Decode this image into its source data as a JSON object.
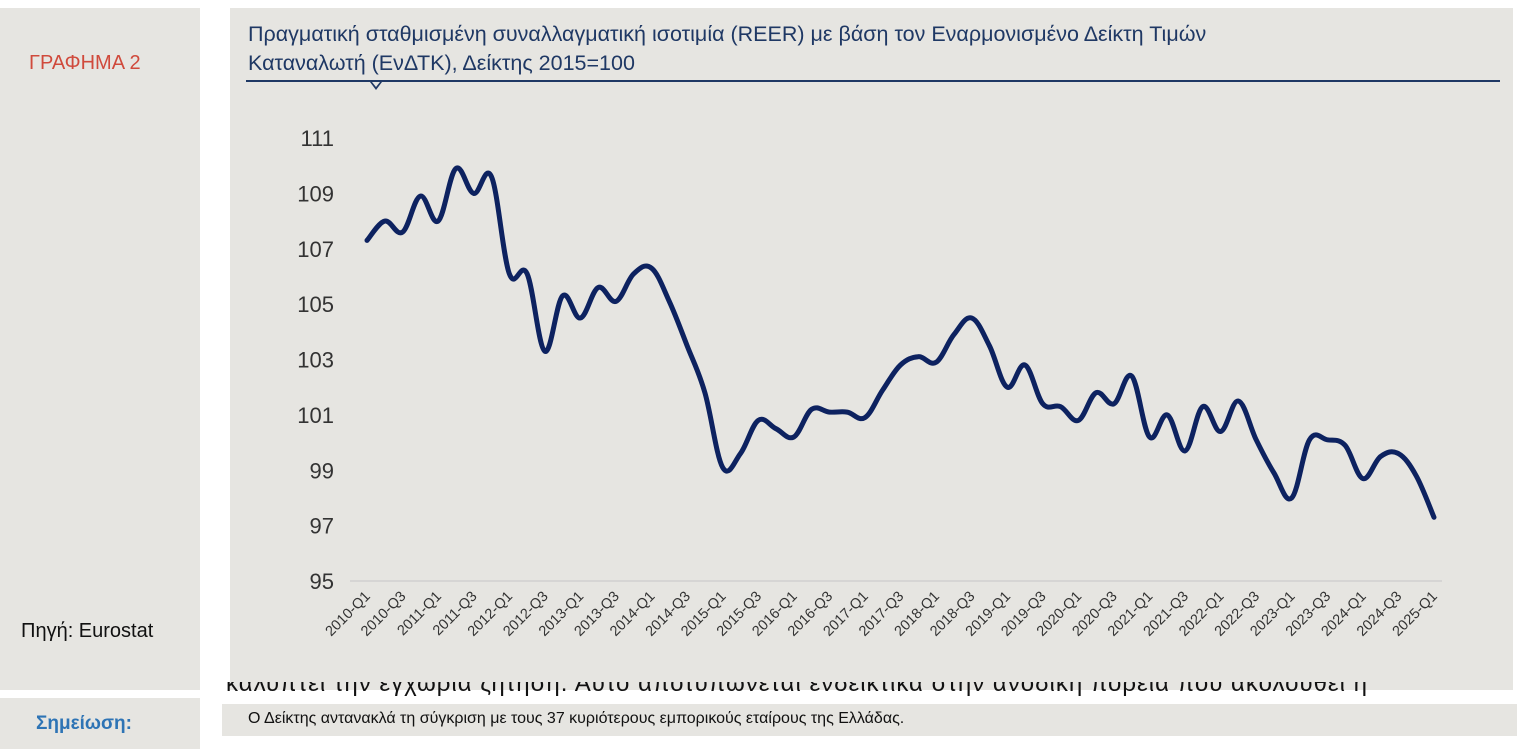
{
  "figure_label": "ΓΡΑΦΗΜΑ 2",
  "source": "Πηγή: Eurostat",
  "note_label": "Σημείωση:",
  "note_text": "Ο Δείκτης αντανακλά τη σύγκριση με τους 37 κυριότερους εμπορικούς εταίρους της Ελλάδας.",
  "background_text": "καλυπτει την εγχωρια ζητηση. Αυτο αποτυπωνεται ενδεικτικα στην ανοδικη πορεια που ακολουθει η",
  "colors": {
    "line": "#0d2260",
    "title": "#1f3864",
    "panel": "#e6e5e1",
    "figure_label": "#d04a3c",
    "note_label": "#2e74b5"
  },
  "chart_data": {
    "type": "line",
    "title_line1": "Πραγματική σταθμισμένη συναλλαγματική ισοτιμία (REER) με βάση τον Εναρμονισμένο Δείκτη Τιμών",
    "title_line2": "Καταναλωτή (ΕνΔΤΚ), Δείκτης 2015=100",
    "ylim": [
      95,
      111
    ],
    "y_ticks": [
      95,
      97,
      99,
      101,
      103,
      105,
      107,
      109,
      111
    ],
    "x_tick_labels": [
      "2010-Q1",
      "2010-Q3",
      "2011-Q1",
      "2011-Q3",
      "2012-Q1",
      "2012-Q3",
      "2013-Q1",
      "2013-Q3",
      "2014-Q1",
      "2014-Q3",
      "2015-Q1",
      "2015-Q3",
      "2016-Q1",
      "2016-Q3",
      "2017-Q1",
      "2017-Q3",
      "2018-Q1",
      "2018-Q3",
      "2019-Q1",
      "2019-Q3",
      "2020-Q1",
      "2020-Q3",
      "2021-Q1",
      "2021-Q3",
      "2022-Q1",
      "2022-Q3",
      "2023-Q1",
      "2023-Q3",
      "2024-Q1",
      "2024-Q3",
      "2025-Q1"
    ],
    "series": [
      {
        "values": [
          107.3,
          108.0,
          107.6,
          108.9,
          108.0,
          109.9,
          109.0,
          109.6,
          106.1,
          106.1,
          103.3,
          105.3,
          104.5,
          105.6,
          105.1,
          106.1,
          106.3,
          105.1,
          103.5,
          101.8,
          99.1,
          99.6,
          100.8,
          100.5,
          100.2,
          101.2,
          101.1,
          101.1,
          100.9,
          101.9,
          102.8,
          103.1,
          102.9,
          103.9,
          104.5,
          103.5,
          102.0,
          102.8,
          101.4,
          101.3,
          100.8,
          101.8,
          101.4,
          102.4,
          100.2,
          101.0,
          99.7,
          101.3,
          100.4,
          101.5,
          100.1,
          98.9,
          98.0,
          100.1,
          100.1,
          99.9,
          98.7,
          99.5,
          99.6,
          98.8,
          97.3
        ]
      }
    ]
  }
}
